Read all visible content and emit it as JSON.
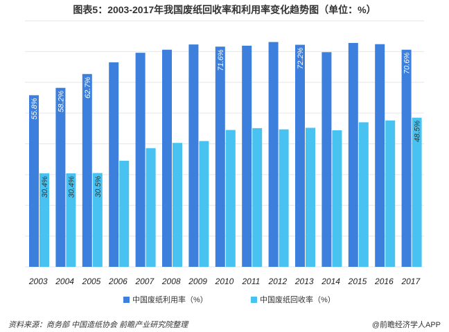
{
  "chart_data": {
    "type": "bar",
    "title": "图表5：2003-2017年我国废纸回收率和利用率变化趋势图（单位：%）",
    "categories": [
      "2003",
      "2004",
      "2005",
      "2006",
      "2007",
      "2008",
      "2009",
      "2010",
      "2011",
      "2012",
      "2013",
      "2014",
      "2015",
      "2016",
      "2017"
    ],
    "series": [
      {
        "name": "中国废纸利用率（%）",
        "color": "#3c7fdc",
        "values": [
          55.8,
          58.2,
          62.7,
          66.5,
          69.6,
          70.6,
          72.3,
          71.6,
          71.9,
          73.1,
          72.2,
          69.8,
          72.8,
          72.4,
          70.6
        ],
        "labels": [
          "55.8%",
          "58.2%",
          "62.7%",
          "",
          "",
          "",
          "",
          "71.6%",
          "",
          "",
          "72.2%",
          "",
          "",
          "",
          "70.6%"
        ]
      },
      {
        "name": "中国废纸回收率（%）",
        "color": "#48c2f0",
        "values": [
          30.4,
          30.4,
          30.5,
          34.5,
          38.6,
          40.3,
          40.9,
          44.5,
          45.1,
          44.7,
          45.2,
          44.4,
          47.0,
          47.6,
          48.5
        ],
        "labels": [
          "30.4%",
          "30.4%",
          "30.5%",
          "",
          "",
          "",
          "",
          "",
          "",
          "",
          "",
          "",
          "",
          "",
          "48.5%"
        ]
      }
    ],
    "ylim": [
      0,
      80
    ],
    "grid": true,
    "legend": "bottom"
  },
  "footer": {
    "source": "资料来源：商务部 中国造纸协会 前瞻产业研究院整理",
    "brand": "@前瞻经济学人APP"
  }
}
